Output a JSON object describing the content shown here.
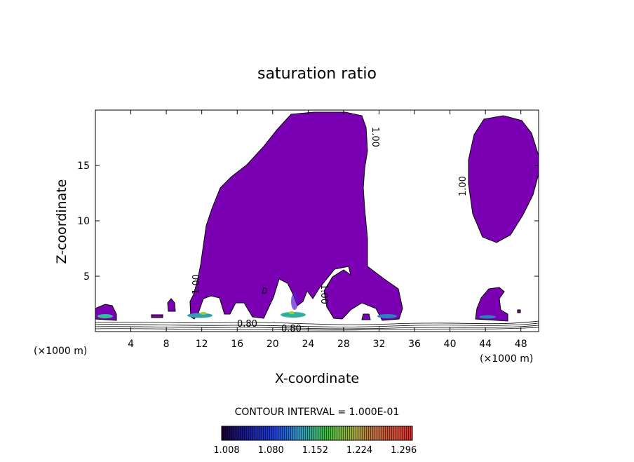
{
  "chart_data": {
    "type": "contour",
    "title": "saturation ratio",
    "xlabel": "X-coordinate",
    "ylabel": "Z-coordinate",
    "x_unit": "(×1000 m)",
    "z_unit": "(×1000 m)",
    "xlim": [
      0,
      50
    ],
    "ylim": [
      0,
      20
    ],
    "x_ticks": [
      4,
      8,
      12,
      16,
      20,
      24,
      28,
      32,
      36,
      40,
      44,
      48
    ],
    "y_ticks": [
      5,
      10,
      15
    ],
    "contour_interval_text": "CONTOUR INTERVAL = 1.000E-01",
    "contour_labels": [
      "1.00",
      "1.00",
      "1.00",
      "1.00",
      "0.80",
      "0.80"
    ],
    "colorbar_ticks": [
      "1.008",
      "1.080",
      "1.152",
      "1.224",
      "1.296"
    ],
    "colorbar_range": [
      1.0,
      1.31
    ],
    "fill_color": "#7b00b4",
    "supersaturated_regions": [
      {
        "name": "main-cloud",
        "x_range": [
          10.5,
          34.5
        ],
        "z_range": [
          0.8,
          19.7
        ]
      },
      {
        "name": "upper-right-cloud",
        "x_range": [
          42.0,
          50.0
        ],
        "z_range": [
          8.0,
          19.2
        ]
      },
      {
        "name": "small-right-cloud",
        "x_range": [
          42.5,
          46.5
        ],
        "z_range": [
          0.9,
          3.9
        ]
      },
      {
        "name": "left-edge-cloud",
        "x_range": [
          0.0,
          2.5
        ],
        "z_range": [
          1.0,
          2.0
        ]
      }
    ]
  }
}
